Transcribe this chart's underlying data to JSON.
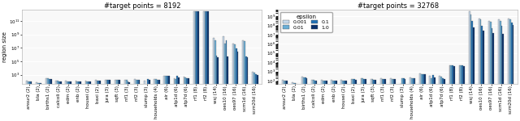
{
  "subplot1_title": "#target points = 8192",
  "subplot2_title": "#target points = 32768",
  "ylabel": "region size",
  "legend_title": "epsilon",
  "epsilon_colors": [
    "#c6d9ec",
    "#6aaed6",
    "#2171b5",
    "#08306b"
  ],
  "epsilon_labels": [
    "0.001",
    "0.01",
    "0.1",
    "1.0"
  ],
  "categories": [
    "ansur2 (2)",
    "bla (2)",
    "births1 (2)",
    "calcoli (2)",
    "edm (2)",
    "enb (2)",
    "housei (2)",
    "baxi (2)",
    "jura (3)",
    "sqft (3)",
    "nf1 (3)",
    "nf2 (3)",
    "slump (3)",
    "households (4)",
    "air (6)",
    "atp1d (6)",
    "atp7d (6)",
    "rf1 (8)",
    "rf2 (8)",
    "wsj (14)",
    "oes10 (16)",
    "oes97 (16)",
    "scm1d (16)",
    "scm20d (16)"
  ],
  "data_8192": [
    [
      130.0,
      110.0,
      105.0,
      100.0
    ],
    [
      80.0,
      65.0,
      60.0,
      55.0
    ],
    [
      350.0,
      280.0,
      250.0,
      220.0
    ],
    [
      140.0,
      120.0,
      115.0,
      110.0
    ],
    [
      130.0,
      110.0,
      105.0,
      100.0
    ],
    [
      130.0,
      115.0,
      110.0,
      105.0
    ],
    [
      120.0,
      110.0,
      105.0,
      100.0
    ],
    [
      170.0,
      150.0,
      145.0,
      140.0
    ],
    [
      200.0,
      180.0,
      175.0,
      170.0
    ],
    [
      190.0,
      170.0,
      165.0,
      160.0
    ],
    [
      190.0,
      160.0,
      90.0,
      70.0
    ],
    [
      210.0,
      180.0,
      170.0,
      160.0
    ],
    [
      140.0,
      8.0,
      210.0,
      180.0
    ],
    [
      230.0,
      210.0,
      200.0,
      190.0
    ],
    [
      800.0,
      700.0,
      750.0,
      650.0
    ],
    [
      300.0,
      250.0,
      700.0,
      450.0
    ],
    [
      600.0,
      450.0,
      350.0,
      300.0
    ],
    [
      2500000000000.0,
      2500000000000.0,
      2500000000000.0,
      2500000000000.0
    ],
    [
      2500000000000.0,
      2500000000000.0,
      2500000000000.0,
      2500000000000.0
    ],
    [
      300000000.0,
      120000000.0,
      800000.0,
      400000.0
    ],
    [
      500000000.0,
      40000000.0,
      120000000.0,
      600000.0
    ],
    [
      50000000.0,
      30000000.0,
      8000000.0,
      3000000.0
    ],
    [
      150000000.0,
      100000000.0,
      600000.0,
      400000.0
    ],
    [
      3000.0,
      2000.0,
      1200.0,
      900.0
    ]
  ],
  "data_32768": [
    [
      120.0,
      105.0,
      100.0,
      98.0
    ],
    [
      70.0,
      60.0,
      55.0,
      50.0
    ],
    [
      300.0,
      250.0,
      220.0,
      200.0
    ],
    [
      130.0,
      115.0,
      110.0,
      105.0
    ],
    [
      120.0,
      105.0,
      100.0,
      98.0
    ],
    [
      120.0,
      110.0,
      105.0,
      100.0
    ],
    [
      115.0,
      105.0,
      100.0,
      98.0
    ],
    [
      160.0,
      145.0,
      140.0,
      135.0
    ],
    [
      185.0,
      170.0,
      165.0,
      160.0
    ],
    [
      160.0,
      145.0,
      135.0,
      130.0
    ],
    [
      175.0,
      160.0,
      150.0,
      145.0
    ],
    [
      175.0,
      160.0,
      150.0,
      145.0
    ],
    [
      50.0,
      200.0,
      180.0,
      160.0
    ],
    [
      210.0,
      200.0,
      190.0,
      180.0
    ],
    [
      600.0,
      550.0,
      550.0,
      500.0
    ],
    [
      350.0,
      200.0,
      450.0,
      250.0
    ],
    [
      350.0,
      300.0,
      200.0,
      140.0
    ],
    [
      5000.0,
      4500.0,
      5000.0,
      4000.0
    ],
    [
      5000.0,
      5000.0,
      4500.0,
      4000.0
    ],
    [
      3000000000.0,
      1500000000.0,
      300000000.0,
      60000000.0
    ],
    [
      500000000.0,
      400000000.0,
      80000000.0,
      25000000.0
    ],
    [
      300000000.0,
      250000000.0,
      45000000.0,
      15000000.0
    ],
    [
      400000000.0,
      300000000.0,
      80000000.0,
      12000000.0
    ],
    [
      500000000.0,
      400000000.0,
      200000000.0,
      100000000.0
    ]
  ],
  "ylim1": [
    50.0,
    5000000000000.0
  ],
  "ylim2": [
    50.0,
    5000000000.0
  ],
  "figsize": [
    6.4,
    1.5
  ],
  "bg_color": "#ffffff",
  "plot_bg": "#f8f8f8",
  "bar_width": 0.15,
  "tick_fontsize": 4.0,
  "label_fontsize": 5.0,
  "title_fontsize": 6.0,
  "legend_fontsize": 4.5
}
